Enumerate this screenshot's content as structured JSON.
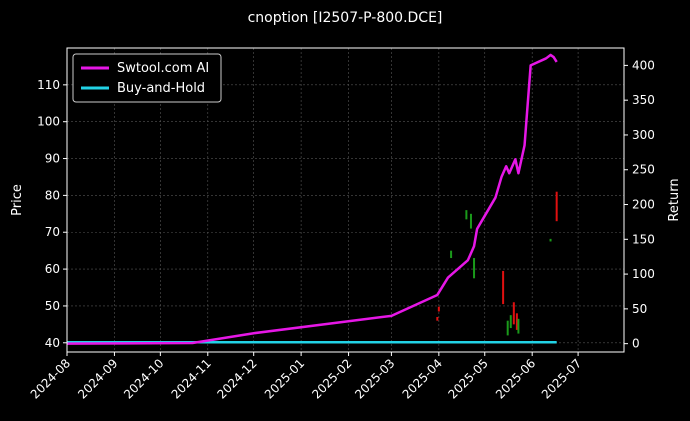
{
  "chart_data": {
    "type": "line",
    "title": "cnoption [I2507-P-800.DCE]",
    "ylabel_left": "Price",
    "ylabel_right": "Return",
    "xlabel": "",
    "x_type": "date",
    "xlim": [
      "2024-08-01",
      "2025-07-31"
    ],
    "ylim_left": [
      37.5,
      120
    ],
    "ylim_right": [
      -12,
      425
    ],
    "x_ticks": [
      "2024-08",
      "2024-09",
      "2024-10",
      "2024-11",
      "2024-12",
      "2025-01",
      "2025-02",
      "2025-03",
      "2025-04",
      "2025-05",
      "2025-06",
      "2025-07"
    ],
    "y_ticks_left": [
      40,
      50,
      60,
      70,
      80,
      90,
      100,
      110
    ],
    "y_ticks_right": [
      0,
      50,
      100,
      150,
      200,
      250,
      300,
      350,
      400
    ],
    "grid": true,
    "legend_position": "top-left",
    "colors": {
      "background": "#000000",
      "ai_line": "#e617e6",
      "hold_line": "#22d3e6",
      "up_candle": "#1a9a1a",
      "down_candle": "#e01010",
      "grid": "#555555"
    },
    "series": [
      {
        "name": "Swtool.com AI",
        "axis": "right",
        "x": [
          "2024-08-01",
          "2024-10-22",
          "2024-12-01",
          "2025-03-01",
          "2025-03-31",
          "2025-04-07",
          "2025-04-20",
          "2025-04-24",
          "2025-04-26",
          "2025-04-30",
          "2025-05-08",
          "2025-05-12",
          "2025-05-15",
          "2025-05-17",
          "2025-05-21",
          "2025-05-23",
          "2025-05-27",
          "2025-05-31",
          "2025-06-10",
          "2025-06-13",
          "2025-06-15",
          "2025-06-17"
        ],
        "values": [
          0,
          1,
          15,
          40,
          70,
          95,
          120,
          140,
          165,
          180,
          210,
          240,
          255,
          245,
          265,
          245,
          285,
          400,
          410,
          415,
          412,
          405
        ]
      },
      {
        "name": "Buy-and-Hold",
        "axis": "right",
        "x": [
          "2024-08-01",
          "2025-06-17"
        ],
        "values": [
          2,
          2
        ]
      },
      {
        "name": "price",
        "axis": "left",
        "kind": "candles",
        "candles": [
          {
            "date": "2025-03-31",
            "low": 46.0,
            "high": 47.0,
            "dir": "down"
          },
          {
            "date": "2025-04-01",
            "low": 48.5,
            "high": 49.8,
            "dir": "down"
          },
          {
            "date": "2025-04-09",
            "low": 63.0,
            "high": 65.0,
            "dir": "up"
          },
          {
            "date": "2025-04-19",
            "low": 73.5,
            "high": 76.0,
            "dir": "up"
          },
          {
            "date": "2025-04-22",
            "low": 71.0,
            "high": 75.0,
            "dir": "up"
          },
          {
            "date": "2025-04-24",
            "low": 57.5,
            "high": 63.0,
            "dir": "up"
          },
          {
            "date": "2025-05-13",
            "low": 50.5,
            "high": 59.5,
            "dir": "down"
          },
          {
            "date": "2025-05-16",
            "low": 42.0,
            "high": 46.0,
            "dir": "up"
          },
          {
            "date": "2025-05-18",
            "low": 44.0,
            "high": 47.5,
            "dir": "up"
          },
          {
            "date": "2025-05-20",
            "low": 45.0,
            "high": 51.0,
            "dir": "down"
          },
          {
            "date": "2025-05-22",
            "low": 43.5,
            "high": 48.0,
            "dir": "down"
          },
          {
            "date": "2025-05-23",
            "low": 42.5,
            "high": 46.5,
            "dir": "up"
          },
          {
            "date": "2025-06-13",
            "low": 67.5,
            "high": 68.2,
            "dir": "up"
          },
          {
            "date": "2025-06-17",
            "low": 73.0,
            "high": 81.0,
            "dir": "down"
          }
        ]
      }
    ]
  }
}
